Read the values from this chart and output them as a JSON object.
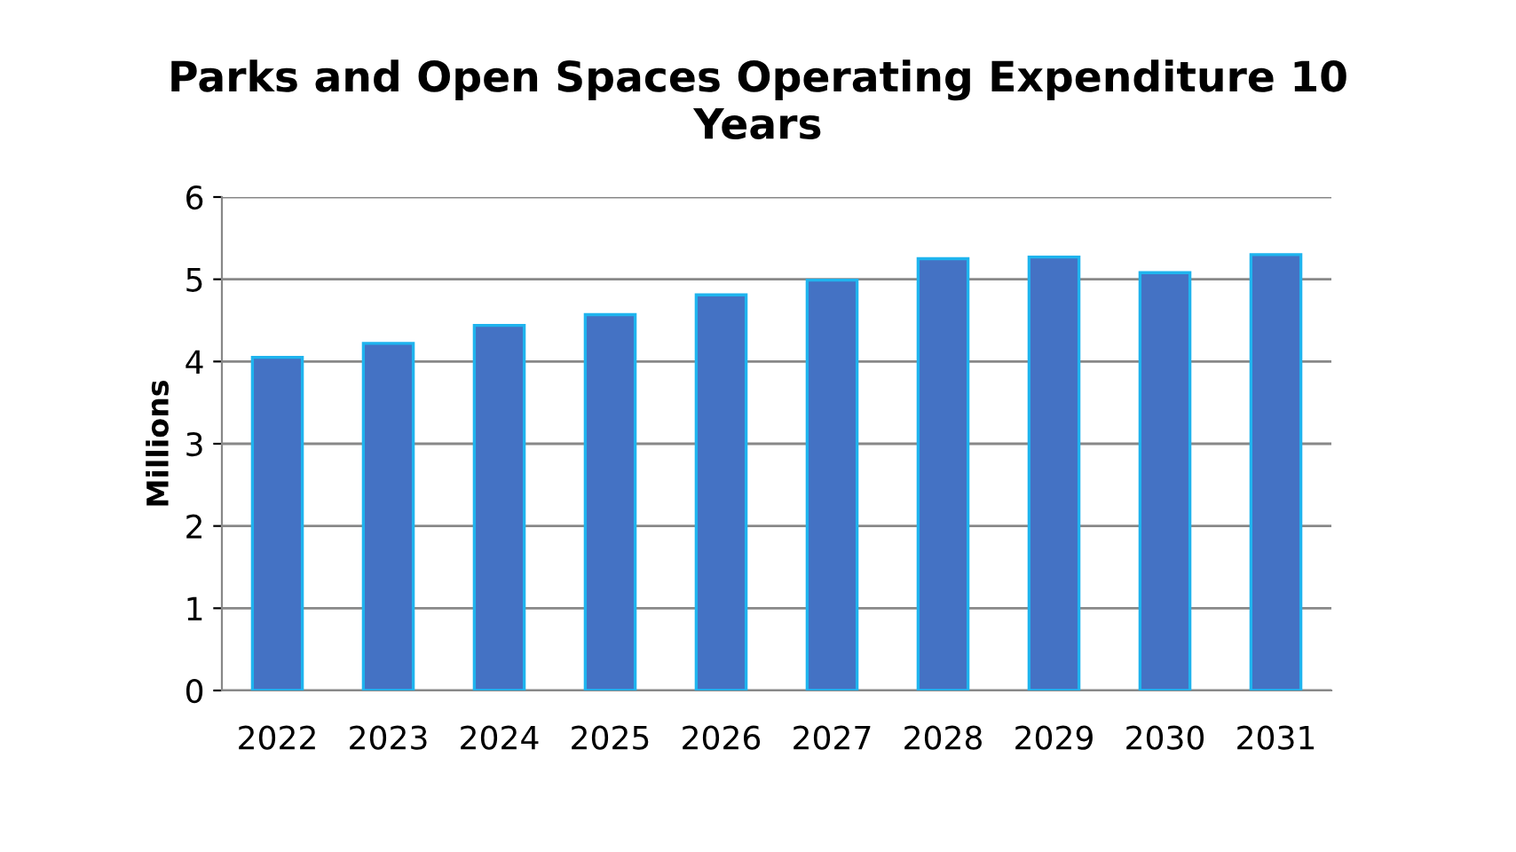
{
  "chart_data": {
    "type": "bar",
    "title": "Parks and Open Spaces Operating Expenditure 10 Years",
    "ylabel": "Millions",
    "categories": [
      "2022",
      "2023",
      "2024",
      "2025",
      "2026",
      "2027",
      "2028",
      "2029",
      "2030",
      "2031"
    ],
    "values": [
      4.05,
      4.22,
      4.44,
      4.57,
      4.81,
      4.99,
      5.25,
      5.27,
      5.08,
      5.3
    ],
    "color": "#4472c4",
    "ylim": [
      0,
      6
    ],
    "yticks": [
      0,
      1,
      2,
      3,
      4,
      5,
      6
    ],
    "grid": "y"
  }
}
